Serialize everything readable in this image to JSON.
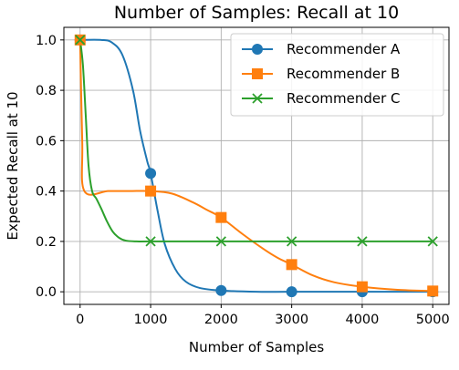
{
  "chart_data": {
    "type": "line",
    "title": "Number of Samples: Recall at 10",
    "xlabel": "Number of Samples",
    "ylabel": "Expected Recall at 10",
    "xlim": [
      -230,
      5230
    ],
    "ylim": [
      -0.05,
      1.05
    ],
    "xticks": [
      0,
      1000,
      2000,
      3000,
      4000,
      5000
    ],
    "xtick_labels": [
      "0",
      "1000",
      "2000",
      "3000",
      "4000",
      "5000"
    ],
    "yticks": [
      0.0,
      0.2,
      0.4,
      0.6,
      0.8,
      1.0
    ],
    "ytick_labels": [
      "0.0",
      "0.2",
      "0.4",
      "0.6",
      "0.8",
      "1.0"
    ],
    "grid": true,
    "legend_position": "top-right",
    "series": [
      {
        "name": "Recommender A",
        "color": "#1f77b4",
        "marker": "circle",
        "markers": [
          [
            0,
            1.0
          ],
          [
            1000,
            0.47
          ],
          [
            2000,
            0.005
          ],
          [
            3000,
            0.0
          ],
          [
            4000,
            0.0
          ],
          [
            5000,
            0.0
          ]
        ],
        "curve": [
          [
            0,
            1.0
          ],
          [
            300,
            1.0
          ],
          [
            450,
            0.99
          ],
          [
            600,
            0.94
          ],
          [
            750,
            0.8
          ],
          [
            850,
            0.64
          ],
          [
            950,
            0.52
          ],
          [
            1000,
            0.47
          ],
          [
            1100,
            0.32
          ],
          [
            1200,
            0.19
          ],
          [
            1350,
            0.09
          ],
          [
            1500,
            0.04
          ],
          [
            1700,
            0.015
          ],
          [
            2000,
            0.005
          ],
          [
            2500,
            0.0
          ],
          [
            3000,
            0.0
          ],
          [
            4000,
            0.0
          ],
          [
            5000,
            0.0
          ]
        ]
      },
      {
        "name": "Recommender B",
        "color": "#ff7f0e",
        "marker": "square",
        "markers": [
          [
            0,
            1.0
          ],
          [
            1000,
            0.4
          ],
          [
            2000,
            0.295
          ],
          [
            3000,
            0.108
          ],
          [
            4000,
            0.02
          ],
          [
            5000,
            0.003
          ]
        ],
        "curve": [
          [
            0,
            1.0
          ],
          [
            30,
            0.6
          ],
          [
            60,
            0.4
          ],
          [
            400,
            0.4
          ],
          [
            700,
            0.4
          ],
          [
            1000,
            0.4
          ],
          [
            1300,
            0.39
          ],
          [
            1600,
            0.355
          ],
          [
            1800,
            0.325
          ],
          [
            2000,
            0.295
          ],
          [
            2300,
            0.23
          ],
          [
            2600,
            0.17
          ],
          [
            2800,
            0.135
          ],
          [
            3000,
            0.108
          ],
          [
            3300,
            0.065
          ],
          [
            3600,
            0.038
          ],
          [
            4000,
            0.02
          ],
          [
            4500,
            0.008
          ],
          [
            5000,
            0.003
          ]
        ]
      },
      {
        "name": "Recommender C",
        "color": "#2ca02c",
        "marker": "x",
        "markers": [
          [
            0,
            1.0
          ],
          [
            1000,
            0.2
          ],
          [
            2000,
            0.2
          ],
          [
            3000,
            0.2
          ],
          [
            4000,
            0.2
          ],
          [
            5000,
            0.2
          ]
        ],
        "curve": [
          [
            0,
            1.0
          ],
          [
            40,
            0.9
          ],
          [
            80,
            0.7
          ],
          [
            120,
            0.5
          ],
          [
            170,
            0.4
          ],
          [
            230,
            0.37
          ],
          [
            300,
            0.33
          ],
          [
            380,
            0.28
          ],
          [
            460,
            0.24
          ],
          [
            550,
            0.215
          ],
          [
            650,
            0.203
          ],
          [
            800,
            0.2
          ],
          [
            1000,
            0.2
          ],
          [
            2000,
            0.2
          ],
          [
            3000,
            0.2
          ],
          [
            4000,
            0.2
          ],
          [
            5000,
            0.2
          ]
        ]
      }
    ]
  }
}
